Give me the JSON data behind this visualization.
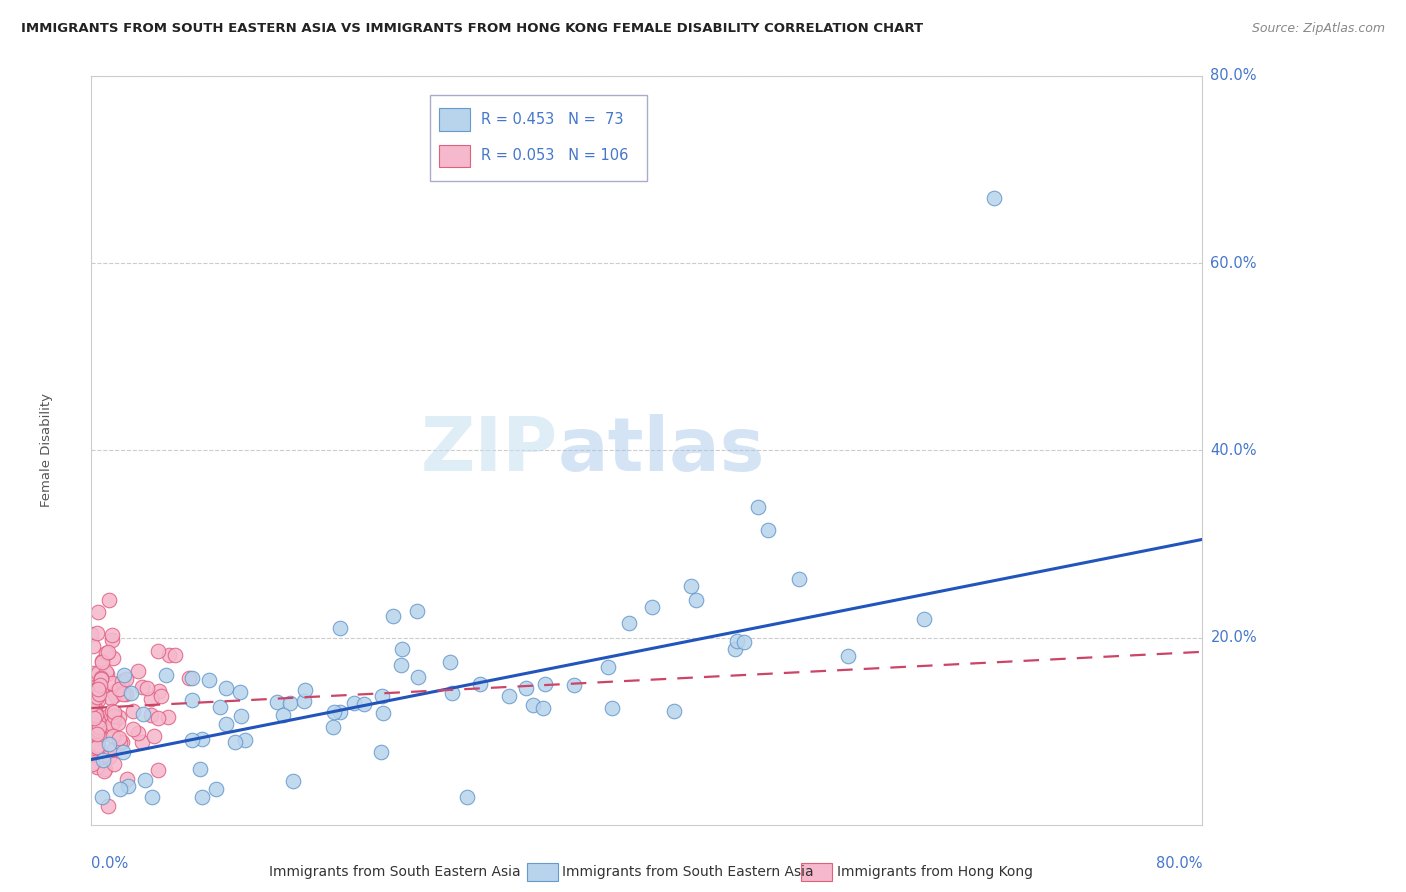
{
  "title": "IMMIGRANTS FROM SOUTH EASTERN ASIA VS IMMIGRANTS FROM HONG KONG FEMALE DISABILITY CORRELATION CHART",
  "source": "Source: ZipAtlas.com",
  "series1_label": "Immigrants from South Eastern Asia",
  "series1_R": 0.453,
  "series1_N": 73,
  "series1_color": "#b8d4ec",
  "series1_edge": "#6699cc",
  "series2_label": "Immigrants from Hong Kong",
  "series2_R": 0.053,
  "series2_N": 106,
  "series2_color": "#f5b8cc",
  "series2_edge": "#e06080",
  "trendline1_color": "#2255bb",
  "trendline2_color": "#cc4466",
  "watermark_zip": "ZIP",
  "watermark_atlas": "atlas",
  "background_color": "#ffffff",
  "grid_color": "#cccccc",
  "axis_label_color": "#4477cc",
  "xlim": [
    0.0,
    0.8
  ],
  "ylim": [
    0.0,
    0.8
  ],
  "ylabel": "Female Disability",
  "trendline1_x0": 0.0,
  "trendline1_y0": 0.07,
  "trendline1_x1": 0.8,
  "trendline1_y1": 0.305,
  "trendline2_x0": 0.0,
  "trendline2_y0": 0.125,
  "trendline2_x1": 0.8,
  "trendline2_y1": 0.185
}
